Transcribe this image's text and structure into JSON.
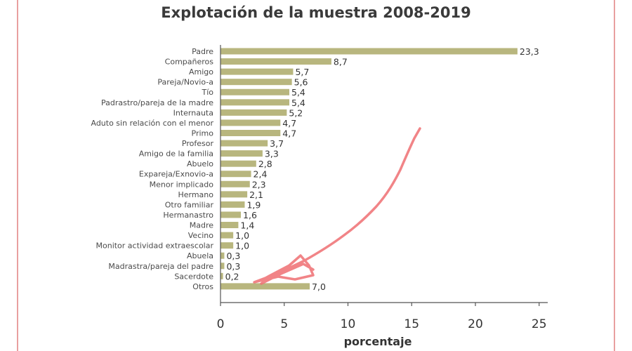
{
  "chart_data": {
    "type": "bar",
    "orientation": "horizontal",
    "title": "Explotación de la muestra 2008-2019",
    "xlabel": "porcentaje",
    "ylabel": "",
    "xlim": [
      0,
      25
    ],
    "ticks": [
      "0",
      "5",
      "10",
      "15",
      "20",
      "25"
    ],
    "tick_values": [
      0,
      5,
      10,
      15,
      20,
      25
    ],
    "grid": false,
    "bar_color": "#b8b67e",
    "categories": [
      "Padre",
      "Compañeros",
      "Amigo",
      "Pareja/Novio-a",
      "Tío",
      "Padrastro/pareja de la madre",
      "Internauta",
      "Aduto sin relación con el menor",
      "Primo",
      "Profesor",
      "Amigo de la familia",
      "Abuelo",
      "Expareja/Exnovio-a",
      "Menor implicado",
      "Hermano",
      "Otro familiar",
      "Hermanastro",
      "Madre",
      "Vecino",
      "Monitor actividad extraescolar",
      "Abuela",
      "Madrastra/pareja del padre",
      "Sacerdote",
      "Otros"
    ],
    "values": [
      23.3,
      8.7,
      5.7,
      5.6,
      5.4,
      5.4,
      5.2,
      4.7,
      4.7,
      3.7,
      3.3,
      2.8,
      2.4,
      2.3,
      2.1,
      1.9,
      1.6,
      1.4,
      1.0,
      1.0,
      0.3,
      0.3,
      0.2,
      7.0
    ],
    "value_labels": [
      "23,3",
      "8,7",
      "5,7",
      "5,6",
      "5,4",
      "5,4",
      "5,2",
      "4,7",
      "4,7",
      "3,7",
      "3,3",
      "2,8",
      "2,4",
      "2,3",
      "2,1",
      "1,9",
      "1,6",
      "1,4",
      "1,0",
      "1,0",
      "0,3",
      "0,3",
      "0,2",
      "7,0"
    ]
  },
  "annotation_color": "#ee6f72",
  "frame_color": "#e8a0a0"
}
